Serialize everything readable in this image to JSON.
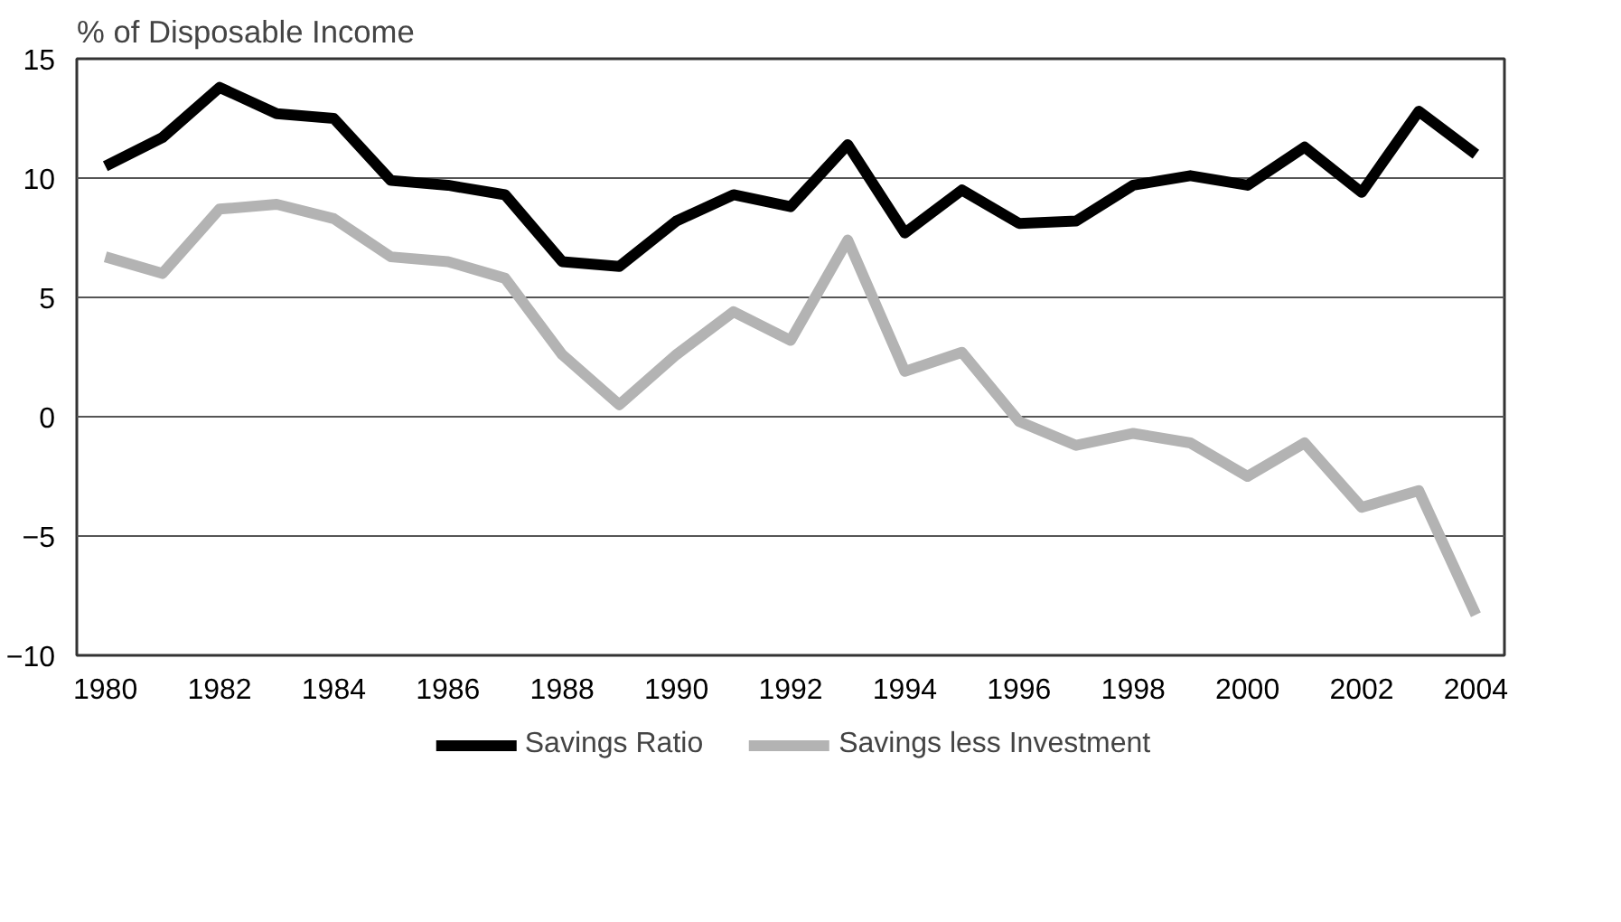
{
  "chart_data": {
    "type": "line",
    "ylabel": "% of Disposable Income",
    "x": [
      1980,
      1981,
      1982,
      1983,
      1984,
      1985,
      1986,
      1987,
      1988,
      1989,
      1990,
      1991,
      1992,
      1993,
      1994,
      1995,
      1996,
      1997,
      1998,
      1999,
      2000,
      2001,
      2002,
      2003,
      2004
    ],
    "series": [
      {
        "name": "Savings Ratio",
        "color": "#000000",
        "values": [
          10.5,
          11.7,
          13.8,
          12.7,
          12.5,
          9.9,
          9.7,
          9.3,
          6.5,
          6.3,
          8.2,
          9.3,
          8.8,
          11.4,
          7.7,
          9.5,
          8.1,
          8.2,
          9.7,
          10.1,
          9.7,
          11.3,
          9.4,
          12.8,
          11.0
        ]
      },
      {
        "name": "Savings less Investment",
        "color": "#b3b3b3",
        "values": [
          6.7,
          6.0,
          8.7,
          8.9,
          8.3,
          6.7,
          6.5,
          5.8,
          2.6,
          0.5,
          2.6,
          4.4,
          3.2,
          7.4,
          1.9,
          2.7,
          -0.2,
          -1.2,
          -0.7,
          -1.1,
          -2.5,
          -1.1,
          -3.8,
          -3.1,
          -8.3
        ]
      }
    ],
    "xlim": [
      1979.5,
      2004.5
    ],
    "xticks": [
      1980,
      1982,
      1984,
      1986,
      1988,
      1990,
      1992,
      1994,
      1996,
      1998,
      2000,
      2002,
      2004
    ],
    "ylim": [
      -10,
      15
    ],
    "yticks": [
      -10,
      -5,
      0,
      5,
      10,
      15
    ],
    "grid": "y",
    "legend": "bottom",
    "line_style": "solid",
    "marker": "none"
  }
}
